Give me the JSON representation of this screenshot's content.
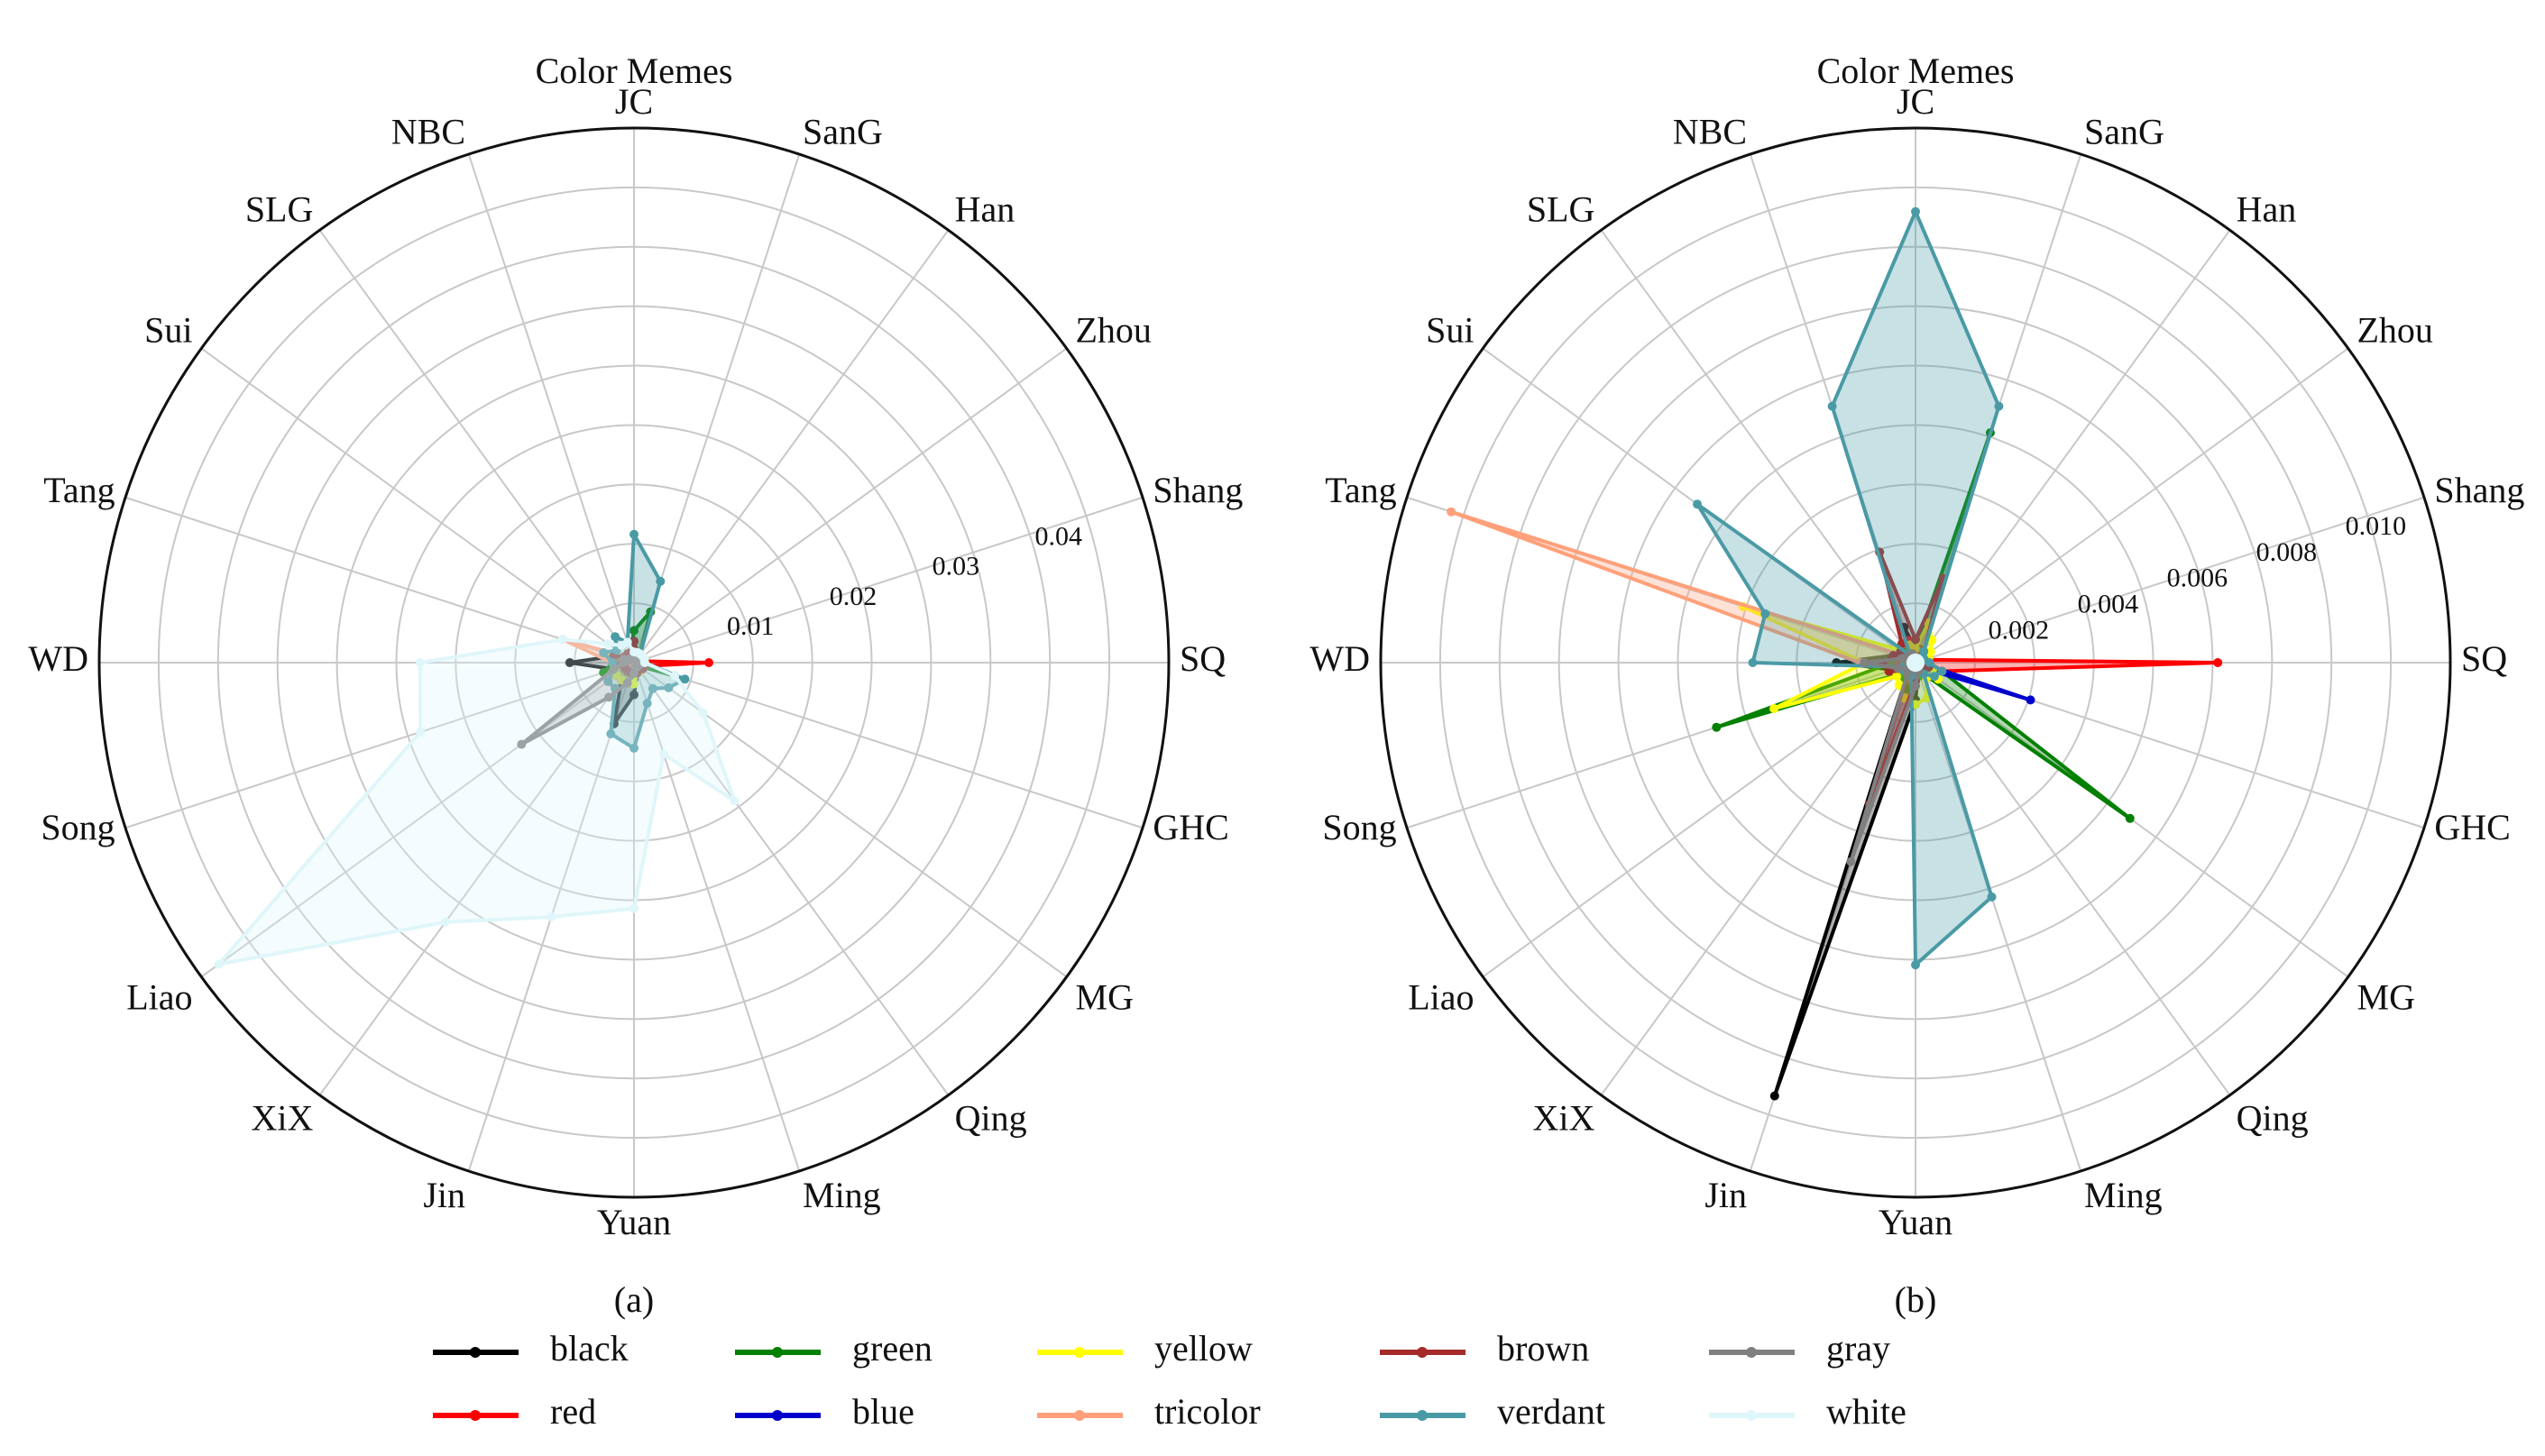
{
  "chart_data": [
    {
      "type": "radar",
      "panel": "(a)",
      "title": "Color Memes",
      "categories": [
        "JC",
        "SanG",
        "Han",
        "Zhou",
        "Shang",
        "SQ",
        "GHC",
        "MG",
        "Qing",
        "Ming",
        "Yuan",
        "Jin",
        "XiX",
        "Liao",
        "Song",
        "WD",
        "Tang",
        "Sui",
        "SLG",
        "NBC"
      ],
      "rlim": [
        0,
        0.05
      ],
      "ticks": [
        0.01,
        0.02,
        0.03,
        0.04
      ],
      "tick_labels": [
        "0.01",
        "0.02",
        "0.03",
        "0.04"
      ],
      "series": [
        {
          "name": "black",
          "values": [
            0.002,
            0.001,
            0.0005,
            0.0005,
            0.0005,
            0.001,
            0.0005,
            0.0005,
            0.0005,
            0.001,
            0.003,
            0.006,
            0.002,
            0.002,
            0.002,
            0.006,
            0.002,
            0.001,
            0.001,
            0.001
          ]
        },
        {
          "name": "red",
          "values": [
            0.002,
            0.001,
            0.0005,
            0.0005,
            0.0005,
            0.007,
            0.001,
            0.0005,
            0.0005,
            0.0005,
            0.001,
            0.001,
            0.001,
            0.001,
            0.001,
            0.002,
            0.001,
            0.001,
            0.001,
            0.001
          ]
        },
        {
          "name": "green",
          "values": [
            0.003,
            0.005,
            0.001,
            0.0005,
            0.0005,
            0.001,
            0.004,
            0.0005,
            0.0005,
            0.001,
            0.001,
            0.002,
            0.002,
            0.002,
            0.003,
            0.002,
            0.002,
            0.001,
            0.001,
            0.001
          ]
        },
        {
          "name": "blue",
          "values": [
            0.0005,
            0.0005,
            0.0005,
            0.0005,
            0.0005,
            0.0005,
            0.0005,
            0.0005,
            0.0005,
            0.0005,
            0.0005,
            0.0005,
            0.0005,
            0.0005,
            0.0005,
            0.001,
            0.0005,
            0.0005,
            0.0005,
            0.0005
          ]
        },
        {
          "name": "yellow",
          "values": [
            0.001,
            0.001,
            0.001,
            0.001,
            0.001,
            0.001,
            0.001,
            0.001,
            0.001,
            0.001,
            0.002,
            0.002,
            0.002,
            0.002,
            0.002,
            0.002,
            0.003,
            0.001,
            0.001,
            0.001
          ]
        },
        {
          "name": "tricolor",
          "values": [
            0.0005,
            0.0005,
            0.0005,
            0.0005,
            0.0005,
            0.0005,
            0.0005,
            0.0005,
            0.0005,
            0.0005,
            0.0005,
            0.0005,
            0.0005,
            0.0005,
            0.001,
            0.002,
            0.007,
            0.001,
            0.0005,
            0.0005
          ]
        },
        {
          "name": "brown",
          "values": [
            0.002,
            0.001,
            0.0005,
            0.0005,
            0.0005,
            0.001,
            0.001,
            0.001,
            0.0005,
            0.001,
            0.001,
            0.001,
            0.001,
            0.001,
            0.001,
            0.002,
            0.002,
            0.001,
            0.001,
            0.001
          ]
        },
        {
          "name": "verdant",
          "values": [
            0.012,
            0.008,
            0.001,
            0.0005,
            0.0005,
            0.001,
            0.005,
            0.004,
            0.003,
            0.004,
            0.008,
            0.007,
            0.003,
            0.003,
            0.002,
            0.002,
            0.003,
            0.002,
            0.003,
            0.002
          ]
        },
        {
          "name": "gray",
          "values": [
            0.0005,
            0.0005,
            0.0005,
            0.0005,
            0.0005,
            0.0005,
            0.0005,
            0.0005,
            0.0005,
            0.0005,
            0.001,
            0.002,
            0.004,
            0.013,
            0.002,
            0.001,
            0.001,
            0.0005,
            0.0005,
            0.0005
          ]
        },
        {
          "name": "white",
          "values": [
            0.001,
            0.001,
            0.001,
            0.001,
            0.001,
            0.001,
            0.004,
            0.008,
            0.016,
            0.009,
            0.023,
            0.025,
            0.03,
            0.048,
            0.021,
            0.02,
            0.007,
            0.003,
            0.002,
            0.002
          ]
        }
      ]
    },
    {
      "type": "radar",
      "panel": "(b)",
      "title": "Color Memes",
      "categories": [
        "JC",
        "SanG",
        "Han",
        "Zhou",
        "Shang",
        "SQ",
        "GHC",
        "MG",
        "Qing",
        "Ming",
        "Yuan",
        "Jin",
        "XiX",
        "Liao",
        "Song",
        "WD",
        "Tang",
        "Sui",
        "SLG",
        "NBC"
      ],
      "rlim": [
        0,
        0.0115
      ],
      "ticks": [
        0.002,
        0.004,
        0.006,
        0.008,
        0.01
      ],
      "tick_labels": [
        "0.002",
        "0.004",
        "0.006",
        "0.008",
        "0.010"
      ],
      "series": [
        {
          "name": "black",
          "values": [
            0.0003,
            0.0002,
            0.0001,
            0.0001,
            0.0001,
            0.0003,
            0.0002,
            0.0001,
            0.0001,
            0.0002,
            0.0008,
            0.0098,
            0.0003,
            0.0002,
            0.0005,
            0.0017,
            0.0005,
            0.0003,
            0.0003,
            0.0008
          ]
        },
        {
          "name": "red",
          "values": [
            0.0003,
            0.0003,
            0.0002,
            0.0001,
            0.0002,
            0.0065,
            0.0006,
            0.0002,
            0.0002,
            0.0002,
            0.0003,
            0.0003,
            0.0002,
            0.0003,
            0.0003,
            0.0004,
            0.0004,
            0.0003,
            0.0003,
            0.0005
          ]
        },
        {
          "name": "green",
          "values": [
            0.0003,
            0.0052,
            0.0003,
            0.0001,
            0.0002,
            0.0003,
            0.0006,
            0.0057,
            0.0003,
            0.0003,
            0.0003,
            0.0006,
            0.0004,
            0.0004,
            0.0045,
            0.0005,
            0.0005,
            0.0003,
            0.0003,
            0.0003
          ]
        },
        {
          "name": "blue",
          "values": [
            0.0001,
            0.0001,
            0.0001,
            0.0001,
            0.0001,
            0.0001,
            0.0026,
            0.0002,
            0.0001,
            0.0001,
            0.0001,
            0.0001,
            0.0001,
            0.0001,
            0.0001,
            0.0001,
            0.0001,
            0.0001,
            0.0001,
            0.0001
          ]
        },
        {
          "name": "yellow",
          "values": [
            0.0003,
            0.0009,
            0.0006,
            0.0004,
            0.0003,
            0.0003,
            0.0004,
            0.0006,
            0.0004,
            0.0008,
            0.0009,
            0.0008,
            0.0006,
            0.0005,
            0.0032,
            0.0011,
            0.0039,
            0.0005,
            0.0005,
            0.0004
          ]
        },
        {
          "name": "tricolor",
          "values": [
            0.0001,
            0.0001,
            0.0001,
            0.0001,
            0.0001,
            0.0001,
            0.0001,
            0.0001,
            0.0001,
            0.0002,
            0.0002,
            0.0002,
            0.0002,
            0.0002,
            0.0004,
            0.0012,
            0.0105,
            0.0002,
            0.0002,
            0.0002
          ]
        },
        {
          "name": "brown",
          "values": [
            0.0005,
            0.0019,
            0.0003,
            0.0002,
            0.0002,
            0.0003,
            0.0003,
            0.0002,
            0.0002,
            0.0002,
            0.0004,
            0.0032,
            0.0003,
            0.0003,
            0.0006,
            0.0007,
            0.0005,
            0.0004,
            0.0005,
            0.0025
          ]
        },
        {
          "name": "verdant",
          "values": [
            0.0097,
            0.0058,
            0.0003,
            0.0002,
            0.0002,
            0.0003,
            0.0006,
            0.0005,
            0.0003,
            0.0053,
            0.0065,
            0.0003,
            0.0003,
            0.0003,
            0.0003,
            0.0035,
            0.0034,
            0.0058,
            0.0002,
            0.0058
          ]
        },
        {
          "name": "gray",
          "values": [
            0.0001,
            0.0001,
            0.0001,
            0.0001,
            0.0001,
            0.0001,
            0.0001,
            0.0001,
            0.0001,
            0.0002,
            0.0005,
            0.0045,
            0.0003,
            0.0002,
            0.0004,
            0.0011,
            0.0003,
            0.0002,
            0.0002,
            0.0002
          ]
        },
        {
          "name": "white",
          "values": [
            0.0001,
            0.0001,
            0.0001,
            0.0001,
            0.0001,
            0.0001,
            0.0001,
            0.0001,
            0.0001,
            0.0001,
            0.0001,
            0.0001,
            0.0001,
            0.0001,
            0.0001,
            0.0001,
            0.0001,
            0.0001,
            0.0001,
            0.0001
          ]
        }
      ]
    }
  ],
  "legend": {
    "entries": [
      {
        "name": "black",
        "color": "#000000"
      },
      {
        "name": "green",
        "color": "#008000"
      },
      {
        "name": "yellow",
        "color": "#ffff00"
      },
      {
        "name": "brown",
        "color": "#a52a2a"
      },
      {
        "name": "gray",
        "color": "#808080"
      },
      {
        "name": "red",
        "color": "#ff0000"
      },
      {
        "name": "blue",
        "color": "#0000cd"
      },
      {
        "name": "tricolor",
        "color": "#ffa07a"
      },
      {
        "name": "verdant",
        "color": "#4a9aa5"
      },
      {
        "name": "white",
        "color": "#dff6fa"
      }
    ]
  },
  "series_colors": {
    "black": "#000000",
    "red": "#ff0000",
    "green": "#008000",
    "blue": "#0000cd",
    "yellow": "#ffff00",
    "tricolor": "#ffa07a",
    "brown": "#a52a2a",
    "verdant": "#4a9aa5",
    "gray": "#808080",
    "white": "#dff6fa"
  }
}
